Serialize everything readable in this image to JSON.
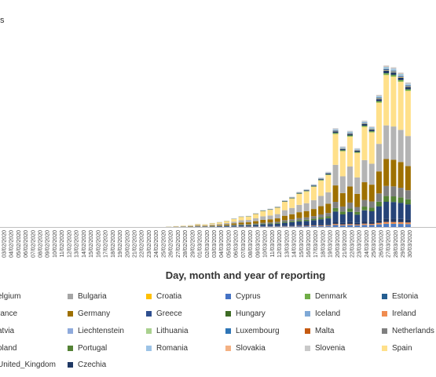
{
  "chart_data": {
    "type": "bar",
    "stacked": true,
    "ylabel": "s",
    "xlabel": "Day, month and year of reporting",
    "categories": [
      "03/02/2020",
      "04/02/2020",
      "05/02/2020",
      "06/02/2020",
      "07/02/2020",
      "08/02/2020",
      "09/02/2020",
      "10/02/2020",
      "11/02/2020",
      "12/02/2020",
      "13/02/2020",
      "14/02/2020",
      "15/02/2020",
      "16/02/2020",
      "17/02/2020",
      "18/02/2020",
      "19/02/2020",
      "20/02/2020",
      "21/02/2020",
      "22/02/2020",
      "23/02/2020",
      "24/02/2020",
      "25/02/2020",
      "26/02/2020",
      "27/02/2020",
      "28/02/2020",
      "29/02/2020",
      "01/03/2020",
      "02/03/2020",
      "03/03/2020",
      "04/03/2020",
      "05/03/2020",
      "06/03/2020",
      "07/03/2020",
      "08/03/2020",
      "09/03/2020",
      "10/03/2020",
      "11/03/2020",
      "12/03/2020",
      "13/03/2020",
      "14/03/2020",
      "15/03/2020",
      "16/03/2020",
      "17/03/2020",
      "18/03/2020",
      "19/03/2020",
      "20/03/2020",
      "21/03/2020",
      "22/03/2020",
      "23/03/2020",
      "24/03/2020",
      "25/03/2020",
      "26/03/2020",
      "27/03/2020",
      "28/03/2020",
      "29/03/2020",
      "30/03/2020"
    ],
    "totals": [
      0,
      0,
      0,
      0,
      0,
      0,
      0,
      0,
      0,
      0,
      0,
      0,
      0,
      0,
      0,
      0,
      0,
      0,
      0,
      0,
      0,
      0,
      0,
      1,
      2,
      3,
      4,
      7,
      6,
      9,
      11,
      14,
      19,
      24,
      25,
      31,
      38,
      41,
      46,
      60,
      68,
      79,
      85,
      96,
      111,
      124,
      222,
      181,
      216,
      177,
      239,
      226,
      297,
      363,
      359,
      347,
      325
    ],
    "series": [
      {
        "name": "elgium",
        "color": "#4e79c4",
        "share": 0.015
      },
      {
        "name": "Bulgaria",
        "color": "#a5a5a5",
        "share": 0.002
      },
      {
        "name": "Croatia",
        "color": "#ffc000",
        "share": 0.002
      },
      {
        "name": "Cyprus",
        "color": "#4472c4",
        "share": 0.001
      },
      {
        "name": "Denmark",
        "color": "#70ad47",
        "share": 0.01
      },
      {
        "name": "Estonia",
        "color": "#255e91",
        "share": 0.002
      },
      {
        "name": "rance",
        "color": "#264478",
        "share": 0.1
      },
      {
        "name": "Germany",
        "color": "#9e7000",
        "share": 0.16
      },
      {
        "name": "Greece",
        "color": "#2e4f8f",
        "share": 0.003
      },
      {
        "name": "Hungary",
        "color": "#3d6b24",
        "share": 0.004
      },
      {
        "name": "Iceland",
        "color": "#7fa9d6",
        "share": 0.002
      },
      {
        "name": "Ireland",
        "color": "#f08c50",
        "share": 0.01
      },
      {
        "name": "atvia",
        "color": "#6b8fcb",
        "share": 0.001
      },
      {
        "name": "Liechtenstein",
        "color": "#8faadc",
        "share": 0.001
      },
      {
        "name": "Lithuania",
        "color": "#a9d18e",
        "share": 0.002
      },
      {
        "name": "Luxembourg",
        "color": "#2e75b6",
        "share": 0.004
      },
      {
        "name": "Malta",
        "color": "#c55a11",
        "share": 0.001
      },
      {
        "name": "Netherlands",
        "color": "#7f7f7f",
        "share": 0.06
      },
      {
        "name": "oland",
        "color": "#203864",
        "share": 0.02
      },
      {
        "name": "Portugal",
        "color": "#548235",
        "share": 0.03
      },
      {
        "name": "Romania",
        "color": "#9dc3e6",
        "share": 0.008
      },
      {
        "name": "Slovakia",
        "color": "#f4b183",
        "share": 0.002
      },
      {
        "name": "Slovenia",
        "color": "#c9c9c9",
        "share": 0.005
      },
      {
        "name": "Spain",
        "color": "#ffe08a",
        "share": 0.3
      },
      {
        "name": "United_Kingdom",
        "color": "#b4b4b4",
        "share": 0.2
      },
      {
        "name": "Czechia",
        "color": "#1f3864",
        "share": 0.015
      }
    ]
  }
}
